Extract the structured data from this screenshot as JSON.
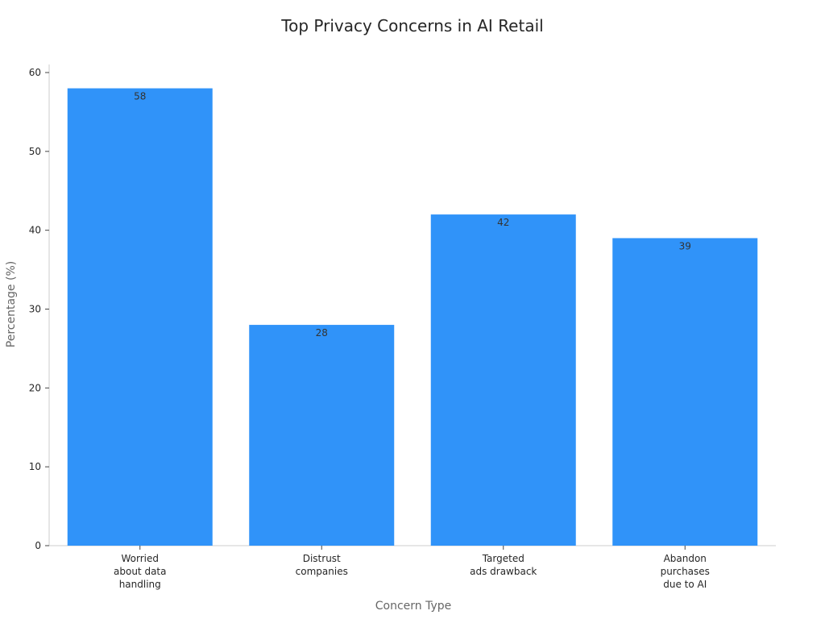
{
  "chart_data": {
    "type": "bar",
    "title": "Top Privacy Concerns in AI Retail",
    "xlabel": "Concern Type",
    "ylabel": "Percentage (%)",
    "categories": [
      [
        "Worried",
        "about data",
        "handling"
      ],
      [
        "Distrust",
        "companies"
      ],
      [
        "Targeted",
        "ads drawback"
      ],
      [
        "Abandon",
        "purchases",
        "due to AI"
      ]
    ],
    "values": [
      58,
      28,
      42,
      39
    ],
    "data_labels": [
      "58",
      "28",
      "42",
      "39"
    ],
    "ylim": [
      0,
      60
    ],
    "yticks": [
      0,
      10,
      20,
      30,
      40,
      50,
      60
    ],
    "grid": false,
    "legend": "none",
    "colors": {
      "bar": "#3093f9",
      "axis": "#cccccc",
      "text": "#262626"
    }
  }
}
